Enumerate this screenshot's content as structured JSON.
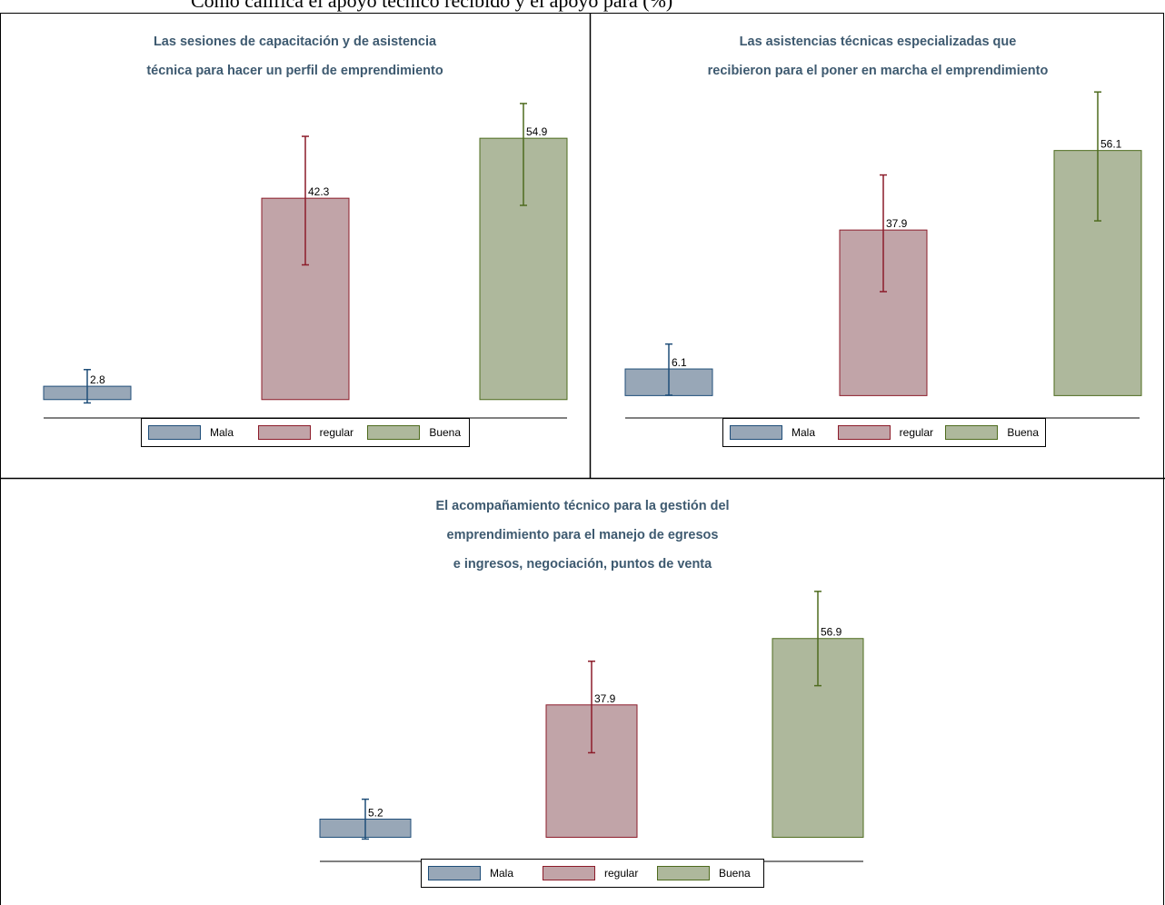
{
  "caption_fragment": "Cómo califica el apoyo técnico recibido y el apoyo para (%)",
  "legend": [
    "Mala",
    "regular",
    "Buena"
  ],
  "colors": {
    "Mala": {
      "fill": "#98a7b7",
      "stroke": "#1f4e79"
    },
    "regular": {
      "fill": "#c1a4a8",
      "stroke": "#8c1c2a"
    },
    "Buena": {
      "fill": "#aeb89c",
      "stroke": "#4e6b1e"
    }
  },
  "chart_data": [
    {
      "type": "bar",
      "title_lines": [
        "Las sesiones de capacitación y de asistencia",
        "técnica para hacer un perfil de emprendimiento"
      ],
      "categories": [
        "Mala",
        "regular",
        "Buena"
      ],
      "values": [
        2.8,
        42.3,
        54.9
      ],
      "error_low": [
        -0.7,
        28.3,
        40.8
      ],
      "error_high": [
        6.3,
        55.3,
        62.2
      ],
      "ylim": [
        -1,
        66
      ]
    },
    {
      "type": "bar",
      "title_lines": [
        "Las asistencias técnicas especializadas que",
        "recibieron para el poner en marcha el emprendimiento"
      ],
      "categories": [
        "Mala",
        "regular",
        "Buena"
      ],
      "values": [
        6.1,
        37.9,
        56.1
      ],
      "error_low": [
        0.1,
        23.8,
        40.0
      ],
      "error_high": [
        11.8,
        50.5,
        69.5
      ],
      "ylim": [
        -2,
        71
      ]
    },
    {
      "type": "bar",
      "title_lines": [
        "El acompañamiento técnico para la gestión del",
        "emprendimiento para el manejo de egresos",
        "e ingresos, negociación, puntos de venta"
      ],
      "categories": [
        "Mala",
        "regular",
        "Buena"
      ],
      "values": [
        5.2,
        37.9,
        56.9
      ],
      "error_low": [
        -0.5,
        24.2,
        43.4
      ],
      "error_high": [
        10.9,
        50.4,
        70.4
      ],
      "ylim": [
        -3,
        74
      ]
    }
  ]
}
